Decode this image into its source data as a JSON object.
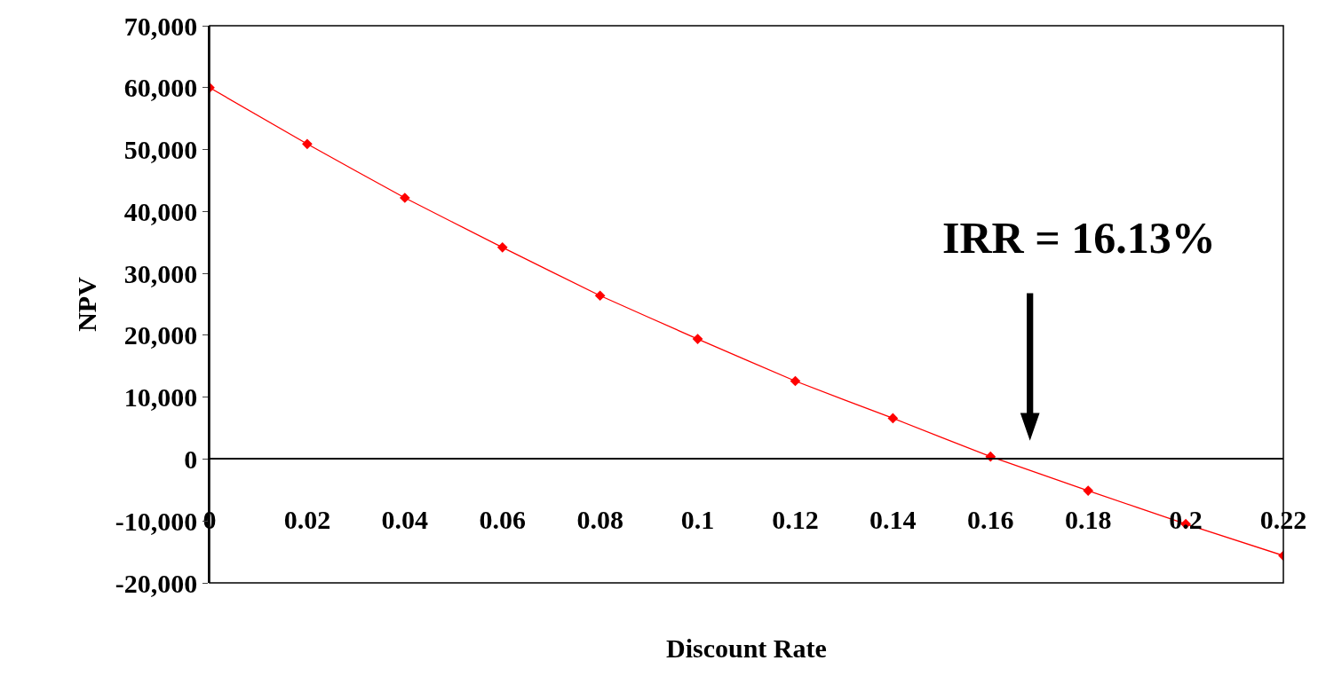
{
  "chart_data": {
    "type": "line",
    "xlabel": "Discount Rate",
    "ylabel": "NPV",
    "x": [
      0,
      0.02,
      0.04,
      0.06,
      0.08,
      0.1,
      0.12,
      0.14,
      0.16,
      0.18,
      0.2,
      0.22
    ],
    "series": [
      {
        "color": "#ff0000",
        "values": [
          60000,
          50900,
          42200,
          34200,
          26400,
          19400,
          12600,
          6600,
          400,
          -5100,
          -10500,
          -15600
        ]
      }
    ],
    "xlim": [
      0,
      0.22
    ],
    "xticks": [
      0,
      0.02,
      0.04,
      0.06,
      0.08,
      0.1,
      0.12,
      0.14,
      0.16,
      0.18,
      0.2,
      0.22
    ],
    "ylim": [
      -20000,
      70000
    ],
    "yticks": [
      {
        "value": -20000,
        "label": "-20,000"
      },
      {
        "value": -10000,
        "label": "-10,000"
      },
      0,
      {
        "value": 10000,
        "label": "10,000"
      },
      {
        "value": 20000,
        "label": "20,000"
      },
      {
        "value": 30000,
        "label": "30,000"
      },
      {
        "value": 40000,
        "label": "40,000"
      },
      {
        "value": 50000,
        "label": "50,000"
      },
      {
        "value": 60000,
        "label": "60,000"
      },
      {
        "value": 70000,
        "label": "70,000"
      }
    ],
    "annotations": [
      "IRR = 16.13%"
    ],
    "legend": false,
    "marker": "diamond",
    "line_style": "solid"
  }
}
